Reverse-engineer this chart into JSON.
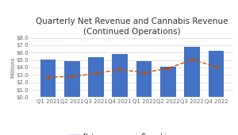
{
  "categories": [
    "Q1 2021",
    "Q2 2021",
    "Q3 2021",
    "Q4 2021",
    "Q1 2022",
    "Q2 2022",
    "Q3 2022",
    "Q4 2022"
  ],
  "net_revenue": [
    5.1,
    4.9,
    5.4,
    5.8,
    4.9,
    4.15,
    6.75,
    6.25
  ],
  "cannabis_revenue": [
    2.7,
    2.8,
    3.2,
    3.75,
    3.3,
    3.9,
    5.05,
    4.1
  ],
  "bar_color": "#4472C4",
  "line_color": "#C0500A",
  "title": "Quarterly Net Revenue and Cannabis Revenue\n(Continued Operations)",
  "ylabel": "Millions",
  "ylim": [
    0,
    8.0
  ],
  "yticks": [
    0.0,
    1.0,
    2.0,
    3.0,
    4.0,
    5.0,
    6.0,
    7.0,
    8.0
  ],
  "ytick_labels": [
    "$0.0",
    "$1.0",
    "$2.0",
    "$3.0",
    "$4.0",
    "$5.0",
    "$6.0",
    "$7.0",
    "$8.0"
  ],
  "legend_net": "Net revenue",
  "legend_cannabis": "Cannabis revenue",
  "bg_color": "#ffffff",
  "grid_color": "#d9d9d9",
  "title_fontsize": 7.5,
  "tick_fontsize": 5.0,
  "ylabel_fontsize": 5.0,
  "legend_fontsize": 5.5
}
